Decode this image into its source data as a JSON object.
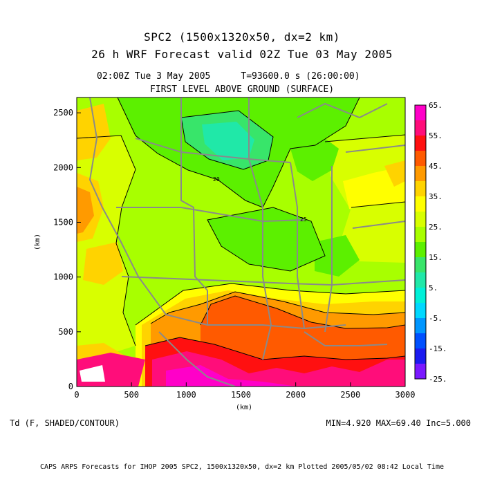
{
  "header": {
    "title_line1": "SPC2 (1500x1320x50, dx=2 km)",
    "title_line2": "26 h WRF Forecast valid 02Z Tue 03 May 2005",
    "valid_time": "02:00Z Tue  3 May 2005",
    "model_time": "T=93600.0 s (26:00:00)",
    "level": "FIRST LEVEL ABOVE GROUND (SURFACE)"
  },
  "axes": {
    "x_label": "(km)",
    "y_label": "(km)",
    "x_ticks": [
      "0",
      "500",
      "1000",
      "1500",
      "2000",
      "2500",
      "3000"
    ],
    "y_ticks": [
      "0",
      "500",
      "1000",
      "1500",
      "2000",
      "2500"
    ],
    "x_range": [
      0,
      3000
    ],
    "y_range": [
      0,
      2640
    ]
  },
  "colorbar": {
    "labels": [
      "65.",
      "55.",
      "45.",
      "35.",
      "25.",
      "15.",
      "5.",
      "-5.",
      "-15.",
      "-25."
    ],
    "colors": [
      "#ff00c8",
      "#ff0d7a",
      "#ff1010",
      "#ff5a00",
      "#ff9a00",
      "#ffd300",
      "#ffff00",
      "#d8ff00",
      "#a8ff00",
      "#5cf000",
      "#38e56a",
      "#20e8a8",
      "#00f0d8",
      "#00d8ff",
      "#0096ff",
      "#0050ff",
      "#1b1bf0",
      "#7a18ff"
    ]
  },
  "contour_labels": [
    "20",
    "25"
  ],
  "variable": "Td (F, SHADED/CONTOUR)",
  "stats": "MIN=4.920 MAX=69.40 Inc=5.000",
  "footer": "CAPS ARPS Forecasts for IHOP 2005  SPC2, 1500x1320x50, dx=2 km  Plotted 2005/05/02 08:42 Local Time"
}
